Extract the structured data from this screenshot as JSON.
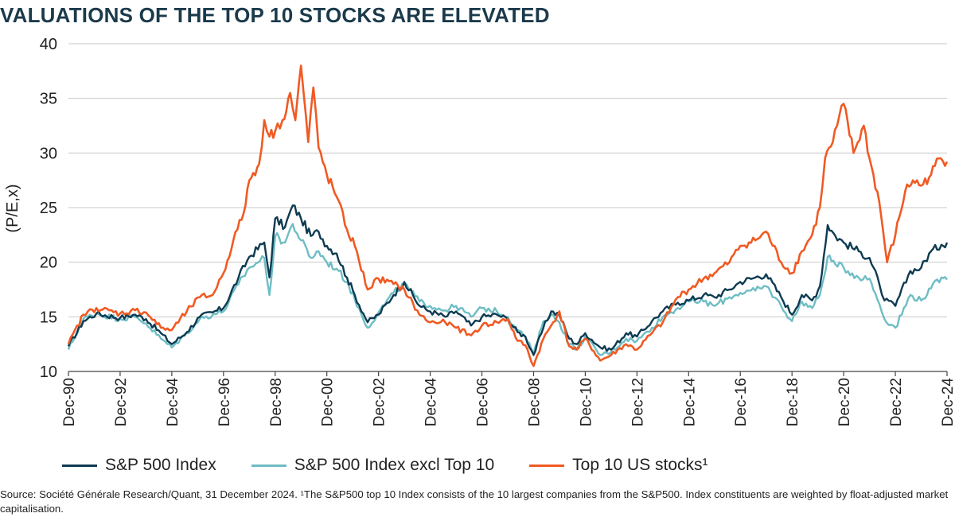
{
  "title": "VALUATIONS OF THE TOP 10 STOCKS ARE ELEVATED",
  "source": "Source: Société Générale Research/Quant, 31 December 2024. ¹The S&P500 top 10 Index consists of the 10 largest companies from the S&P500. Index constituents are weighted by float-adjusted market capitalisation.",
  "chart_data": {
    "type": "line",
    "title": "VALUATIONS OF THE TOP 10 STOCKS ARE ELEVATED",
    "xlabel": "",
    "ylabel": "(P/E,x)",
    "ylim": [
      10,
      40
    ],
    "xlim": [
      1990.92,
      2024.92
    ],
    "y_ticks": [
      10,
      15,
      20,
      25,
      30,
      35,
      40
    ],
    "y_tick_labels": [
      "10",
      "15",
      "20",
      "25",
      "30",
      "35",
      "40"
    ],
    "x_ticks": [
      1990.92,
      1992.92,
      1994.92,
      1996.92,
      1998.92,
      2000.92,
      2002.92,
      2004.92,
      2006.92,
      2008.92,
      2010.92,
      2012.92,
      2014.92,
      2016.92,
      2018.92,
      2020.92,
      2022.92,
      2024.92
    ],
    "x_tick_labels": [
      "Dec-90",
      "Dec-92",
      "Dec-94",
      "Dec-96",
      "Dec-98",
      "Dec-00",
      "Dec-02",
      "Dec-04",
      "Dec-06",
      "Dec-08",
      "Dec-10",
      "Dec-12",
      "Dec-14",
      "Dec-16",
      "Dec-18",
      "Dec-20",
      "Dec-22",
      "Dec-24"
    ],
    "grid": "horizontal",
    "legend_position": "bottom",
    "series": [
      {
        "name": "S&P 500 Index",
        "color": "#0d3b52",
        "x": [
          1990.92,
          1991.5,
          1992.0,
          1992.92,
          1993.5,
          1993.92,
          1994.5,
          1994.92,
          1995.5,
          1996.0,
          1996.5,
          1996.92,
          1997.5,
          1997.92,
          1998.5,
          1998.7,
          1998.92,
          1999.3,
          1999.6,
          1999.92,
          2000.3,
          2000.6,
          2000.92,
          2001.3,
          2001.7,
          2002.0,
          2002.5,
          2002.92,
          2003.5,
          2003.92,
          2004.5,
          2004.92,
          2005.5,
          2005.92,
          2006.5,
          2006.92,
          2007.5,
          2007.92,
          2008.3,
          2008.6,
          2008.92,
          2009.3,
          2009.6,
          2009.92,
          2010.3,
          2010.6,
          2010.92,
          2011.5,
          2011.92,
          2012.5,
          2012.92,
          2013.5,
          2013.92,
          2014.5,
          2014.92,
          2015.5,
          2015.92,
          2016.5,
          2016.92,
          2017.5,
          2017.92,
          2018.5,
          2018.92,
          2019.3,
          2019.7,
          2020.0,
          2020.3,
          2020.6,
          2020.92,
          2021.5,
          2021.92,
          2022.3,
          2022.5,
          2022.92,
          2023.5,
          2023.92,
          2024.3,
          2024.7,
          2024.92
        ],
        "y": [
          12.3,
          14.6,
          15.3,
          14.9,
          15.2,
          14.8,
          13.5,
          12.5,
          13.6,
          15.0,
          15.4,
          15.8,
          18.6,
          20.5,
          21.8,
          18.6,
          24.0,
          23.2,
          25.2,
          24.0,
          22.4,
          22.8,
          21.5,
          20.8,
          18.6,
          17.0,
          14.5,
          15.2,
          17.0,
          18.2,
          16.0,
          15.5,
          15.0,
          15.5,
          14.2,
          15.0,
          15.2,
          14.8,
          13.6,
          13.2,
          11.5,
          14.0,
          15.5,
          15.2,
          13.0,
          12.5,
          13.5,
          12.2,
          12.0,
          13.5,
          13.2,
          14.6,
          15.5,
          16.3,
          16.5,
          17.0,
          16.8,
          17.5,
          18.2,
          18.6,
          18.9,
          16.8,
          15.2,
          17.0,
          16.5,
          17.8,
          23.4,
          22.4,
          21.8,
          21.0,
          20.4,
          18.0,
          16.5,
          16.0,
          19.2,
          19.5,
          21.0,
          21.6,
          21.8
        ]
      },
      {
        "name": "S&P 500 Index excl Top 10",
        "color": "#6ebdc4",
        "x": [
          1990.92,
          1991.5,
          1992.0,
          1992.92,
          1993.5,
          1993.92,
          1994.5,
          1994.92,
          1995.5,
          1996.0,
          1996.5,
          1996.92,
          1997.5,
          1997.92,
          1998.5,
          1998.7,
          1998.92,
          1999.3,
          1999.6,
          1999.92,
          2000.3,
          2000.6,
          2000.92,
          2001.3,
          2001.7,
          2002.0,
          2002.5,
          2002.92,
          2003.5,
          2003.92,
          2004.5,
          2004.92,
          2005.5,
          2005.92,
          2006.5,
          2006.92,
          2007.5,
          2007.92,
          2008.3,
          2008.6,
          2008.92,
          2009.3,
          2009.6,
          2009.92,
          2010.3,
          2010.6,
          2010.92,
          2011.5,
          2011.92,
          2012.5,
          2012.92,
          2013.5,
          2013.92,
          2014.5,
          2014.92,
          2015.5,
          2015.92,
          2016.5,
          2016.92,
          2017.5,
          2017.92,
          2018.5,
          2018.92,
          2019.3,
          2019.7,
          2020.0,
          2020.3,
          2020.6,
          2020.92,
          2021.5,
          2021.92,
          2022.3,
          2022.5,
          2022.92,
          2023.5,
          2023.92,
          2024.3,
          2024.7,
          2024.92
        ],
        "y": [
          12.0,
          14.8,
          15.3,
          14.8,
          15.0,
          14.4,
          13.0,
          12.2,
          13.5,
          14.8,
          15.2,
          15.5,
          18.0,
          19.5,
          20.4,
          17.0,
          22.4,
          21.8,
          23.5,
          22.0,
          20.4,
          21.0,
          20.0,
          19.4,
          18.2,
          16.6,
          14.0,
          15.4,
          17.2,
          18.0,
          16.4,
          16.0,
          15.6,
          16.0,
          15.0,
          15.8,
          15.5,
          15.0,
          13.8,
          13.2,
          11.6,
          14.6,
          15.2,
          14.5,
          12.5,
          12.0,
          13.2,
          11.5,
          11.8,
          13.0,
          12.8,
          14.0,
          15.0,
          15.8,
          16.4,
          16.4,
          16.0,
          16.8,
          17.2,
          17.4,
          17.8,
          16.0,
          14.6,
          16.4,
          15.8,
          17.0,
          20.5,
          19.8,
          19.5,
          18.6,
          18.5,
          16.2,
          14.8,
          14.0,
          17.0,
          16.5,
          17.6,
          18.6,
          18.4
        ]
      },
      {
        "name": "Top 10 US stocks¹",
        "color": "#f05a23",
        "x": [
          1990.92,
          1991.5,
          1992.0,
          1992.92,
          1993.5,
          1993.92,
          1994.5,
          1994.92,
          1995.5,
          1996.0,
          1996.5,
          1996.92,
          1997.3,
          1997.7,
          1997.92,
          1998.3,
          1998.5,
          1998.7,
          1998.92,
          1999.2,
          1999.5,
          1999.7,
          1999.92,
          2000.2,
          2000.4,
          2000.6,
          2000.92,
          2001.3,
          2001.7,
          2002.0,
          2002.5,
          2002.92,
          2003.5,
          2003.92,
          2004.5,
          2004.92,
          2005.5,
          2005.92,
          2006.5,
          2006.92,
          2007.5,
          2007.92,
          2008.3,
          2008.6,
          2008.92,
          2009.3,
          2009.6,
          2009.92,
          2010.3,
          2010.6,
          2010.92,
          2011.5,
          2011.92,
          2012.5,
          2012.92,
          2013.5,
          2013.92,
          2014.5,
          2014.92,
          2015.5,
          2015.92,
          2016.5,
          2016.92,
          2017.5,
          2017.92,
          2018.5,
          2018.92,
          2019.3,
          2019.7,
          2020.0,
          2020.2,
          2020.5,
          2020.92,
          2021.3,
          2021.7,
          2021.92,
          2022.3,
          2022.6,
          2022.92,
          2023.3,
          2023.6,
          2023.92,
          2024.3,
          2024.6,
          2024.92
        ],
        "y": [
          12.5,
          15.2,
          15.8,
          15.3,
          15.6,
          15.4,
          14.0,
          13.8,
          15.5,
          16.8,
          17.0,
          19.0,
          22.0,
          24.5,
          27.5,
          29.0,
          33.0,
          31.5,
          32.0,
          33.0,
          35.5,
          33.0,
          38.0,
          31.0,
          36.0,
          30.5,
          28.0,
          26.0,
          23.0,
          21.5,
          17.5,
          18.5,
          18.0,
          17.5,
          15.2,
          14.5,
          14.5,
          14.0,
          13.3,
          14.2,
          14.5,
          14.8,
          12.8,
          12.4,
          10.5,
          13.0,
          14.2,
          15.5,
          12.3,
          12.0,
          13.0,
          11.0,
          11.5,
          12.5,
          12.0,
          13.5,
          14.5,
          16.8,
          17.5,
          18.5,
          19.0,
          20.0,
          21.5,
          22.0,
          22.8,
          20.0,
          19.0,
          21.0,
          22.5,
          25.0,
          29.5,
          31.0,
          34.5,
          30.0,
          32.5,
          29.5,
          25.5,
          20.0,
          22.5,
          26.5,
          27.5,
          27.0,
          28.0,
          29.5,
          29.2
        ]
      }
    ]
  }
}
